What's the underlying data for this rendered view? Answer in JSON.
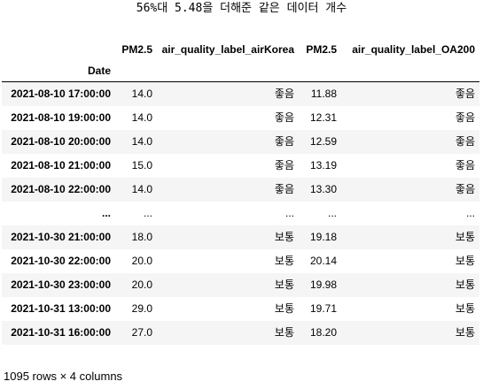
{
  "title": "56%대 5.48을 더해준 같은 데이터 개수",
  "table": {
    "columns": [
      "PM2.5",
      "air_quality_label_airKorea",
      "PM2.5",
      "air_quality_label_OA200"
    ],
    "index_name": "Date",
    "rows": [
      {
        "index": "2021-08-10 17:00:00",
        "cells": [
          "14.0",
          "좋음",
          "11.88",
          "좋음"
        ]
      },
      {
        "index": "2021-08-10 19:00:00",
        "cells": [
          "14.0",
          "좋음",
          "12.31",
          "좋음"
        ]
      },
      {
        "index": "2021-08-10 20:00:00",
        "cells": [
          "14.0",
          "좋음",
          "12.59",
          "좋음"
        ]
      },
      {
        "index": "2021-08-10 21:00:00",
        "cells": [
          "15.0",
          "좋음",
          "13.19",
          "좋음"
        ]
      },
      {
        "index": "2021-08-10 22:00:00",
        "cells": [
          "14.0",
          "좋음",
          "13.30",
          "좋음"
        ]
      },
      {
        "index": "...",
        "cells": [
          "...",
          "...",
          "...",
          "..."
        ]
      },
      {
        "index": "2021-10-30 21:00:00",
        "cells": [
          "18.0",
          "보통",
          "19.18",
          "보통"
        ]
      },
      {
        "index": "2021-10-30 22:00:00",
        "cells": [
          "20.0",
          "보통",
          "20.14",
          "보통"
        ]
      },
      {
        "index": "2021-10-30 23:00:00",
        "cells": [
          "20.0",
          "보통",
          "19.98",
          "보통"
        ]
      },
      {
        "index": "2021-10-31 13:00:00",
        "cells": [
          "29.0",
          "보통",
          "19.71",
          "보통"
        ]
      },
      {
        "index": "2021-10-31 16:00:00",
        "cells": [
          "27.0",
          "보통",
          "18.20",
          "보통"
        ]
      }
    ]
  },
  "footer": "1095 rows × 4 columns"
}
